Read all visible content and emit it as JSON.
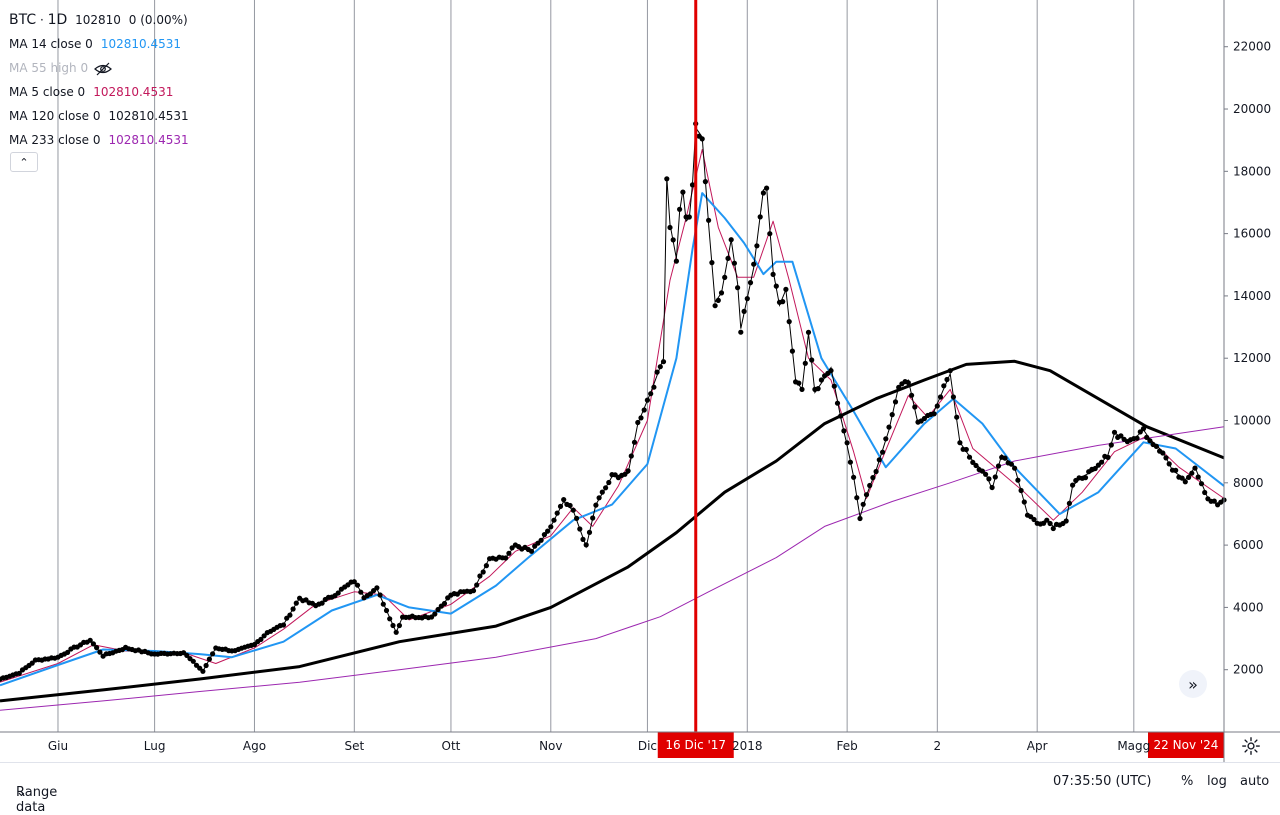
{
  "legend": {
    "symbol": "BTC",
    "sep": "·",
    "interval": "1D",
    "price": "102810",
    "change": "0 (0.00%)",
    "indicators": [
      {
        "label": "MA 14 close 0",
        "value": "102810.4531",
        "color": "#2962ff",
        "value_color": "#2196f3"
      },
      {
        "label": "MA 55 high 0",
        "value": "",
        "color": "#b2b5be",
        "hidden": true
      },
      {
        "label": "MA 5 close 0",
        "value": "102810.4531",
        "color": "#c2185b",
        "value_color": "#c2185b"
      },
      {
        "label": "MA 120 close 0",
        "value": "102810.4531",
        "color": "#000000",
        "value_color": "#131722"
      },
      {
        "label": "MA 233 close 0",
        "value": "102810.4531",
        "color": "#9c27b0",
        "value_color": "#9c27b0"
      }
    ],
    "collapse_icon": "chevron-up-icon"
  },
  "scroll_icon": "double-chevron-right-icon",
  "bottom": {
    "range_label": "Range data",
    "time": "07:35:50 (UTC)",
    "pct": "%",
    "log": "log",
    "auto": "auto"
  },
  "chart_data": {
    "type": "line",
    "ylim": [
      0,
      23500
    ],
    "yticks": [
      2000,
      4000,
      6000,
      8000,
      10000,
      12000,
      14000,
      16000,
      18000,
      20000,
      22000
    ],
    "x_range": [
      "2017-05-14",
      "2018-05-29"
    ],
    "xticks": [
      {
        "date": "2017-06-01",
        "label": "Giu"
      },
      {
        "date": "2017-07-01",
        "label": "Lug"
      },
      {
        "date": "2017-08-01",
        "label": "Ago"
      },
      {
        "date": "2017-09-01",
        "label": "Set"
      },
      {
        "date": "2017-10-01",
        "label": "Ott"
      },
      {
        "date": "2017-11-01",
        "label": "Nov"
      },
      {
        "date": "2017-12-01",
        "label": "Dic"
      },
      {
        "date": "2018-01-01",
        "label": "2018"
      },
      {
        "date": "2018-02-01",
        "label": "Feb"
      },
      {
        "date": "2018-03-01",
        "label": "2"
      },
      {
        "date": "2018-04-01",
        "label": "Apr"
      },
      {
        "date": "2018-05-01",
        "label": "Magg"
      }
    ],
    "crosshair": {
      "date": "2017-12-16",
      "label": "16 Dic '17",
      "color": "#e00000"
    },
    "end_label": "22 Nov '24",
    "price_key_points": [
      [
        "2017-05-14",
        1700
      ],
      [
        "2017-05-20",
        1900
      ],
      [
        "2017-05-25",
        2300
      ],
      [
        "2017-06-01",
        2400
      ],
      [
        "2017-06-06",
        2700
      ],
      [
        "2017-06-11",
        2950
      ],
      [
        "2017-06-15",
        2450
      ],
      [
        "2017-06-22",
        2700
      ],
      [
        "2017-07-01",
        2500
      ],
      [
        "2017-07-10",
        2550
      ],
      [
        "2017-07-16",
        1950
      ],
      [
        "2017-07-20",
        2700
      ],
      [
        "2017-07-26",
        2600
      ],
      [
        "2017-08-01",
        2800
      ],
      [
        "2017-08-05",
        3200
      ],
      [
        "2017-08-10",
        3450
      ],
      [
        "2017-08-15",
        4300
      ],
      [
        "2017-08-20",
        4050
      ],
      [
        "2017-08-25",
        4350
      ],
      [
        "2017-09-01",
        4850
      ],
      [
        "2017-09-04",
        4350
      ],
      [
        "2017-09-08",
        4600
      ],
      [
        "2017-09-14",
        3200
      ],
      [
        "2017-09-16",
        3700
      ],
      [
        "2017-09-25",
        3700
      ],
      [
        "2017-10-01",
        4400
      ],
      [
        "2017-10-08",
        4550
      ],
      [
        "2017-10-13",
        5600
      ],
      [
        "2017-10-18",
        5600
      ],
      [
        "2017-10-21",
        6000
      ],
      [
        "2017-10-26",
        5800
      ],
      [
        "2017-10-31",
        6400
      ],
      [
        "2017-11-05",
        7400
      ],
      [
        "2017-11-08",
        7100
      ],
      [
        "2017-11-12",
        5950
      ],
      [
        "2017-11-15",
        7300
      ],
      [
        "2017-11-20",
        8200
      ],
      [
        "2017-11-25",
        8300
      ],
      [
        "2017-11-28",
        9900
      ],
      [
        "2017-12-02",
        10900
      ],
      [
        "2017-12-06",
        12000
      ],
      [
        "2017-12-07",
        17800
      ],
      [
        "2017-12-08",
        16300
      ],
      [
        "2017-12-10",
        15200
      ],
      [
        "2017-12-11",
        16700
      ],
      [
        "2017-12-12",
        17400
      ],
      [
        "2017-12-13",
        16400
      ],
      [
        "2017-12-14",
        16500
      ],
      [
        "2017-12-15",
        17600
      ],
      [
        "2017-12-16",
        19400
      ],
      [
        "2017-12-18",
        19100
      ],
      [
        "2017-12-20",
        16300
      ],
      [
        "2017-12-22",
        13800
      ],
      [
        "2017-12-24",
        14100
      ],
      [
        "2017-12-27",
        15800
      ],
      [
        "2017-12-29",
        14400
      ],
      [
        "2017-12-30",
        12950
      ],
      [
        "2018-01-03",
        14900
      ],
      [
        "2018-01-06",
        17400
      ],
      [
        "2018-01-07",
        17500
      ],
      [
        "2018-01-09",
        14800
      ],
      [
        "2018-01-11",
        13700
      ],
      [
        "2018-01-13",
        14200
      ],
      [
        "2018-01-16",
        11300
      ],
      [
        "2018-01-18",
        11000
      ],
      [
        "2018-01-20",
        12800
      ],
      [
        "2018-01-22",
        10900
      ],
      [
        "2018-01-24",
        11200
      ],
      [
        "2018-01-27",
        11700
      ],
      [
        "2018-01-30",
        10100
      ],
      [
        "2018-02-01",
        9200
      ],
      [
        "2018-02-03",
        8200
      ],
      [
        "2018-02-05",
        6900
      ],
      [
        "2018-02-07",
        7600
      ],
      [
        "2018-02-10",
        8400
      ],
      [
        "2018-02-14",
        9700
      ],
      [
        "2018-02-17",
        11100
      ],
      [
        "2018-02-20",
        11300
      ],
      [
        "2018-02-23",
        9900
      ],
      [
        "2018-02-28",
        10300
      ],
      [
        "2018-03-05",
        11500
      ],
      [
        "2018-03-08",
        9300
      ],
      [
        "2018-03-12",
        8700
      ],
      [
        "2018-03-16",
        8300
      ],
      [
        "2018-03-18",
        7800
      ],
      [
        "2018-03-21",
        8900
      ],
      [
        "2018-03-25",
        8500
      ],
      [
        "2018-03-29",
        7000
      ],
      [
        "2018-04-01",
        6700
      ],
      [
        "2018-04-04",
        6800
      ],
      [
        "2018-04-06",
        6600
      ],
      [
        "2018-04-10",
        6800
      ],
      [
        "2018-04-12",
        7900
      ],
      [
        "2018-04-15",
        8200
      ],
      [
        "2018-04-19",
        8400
      ],
      [
        "2018-04-23",
        8900
      ],
      [
        "2018-04-25",
        9600
      ],
      [
        "2018-04-30",
        9300
      ],
      [
        "2018-05-04",
        9700
      ],
      [
        "2018-05-06",
        9400
      ],
      [
        "2018-05-10",
        9000
      ],
      [
        "2018-05-13",
        8400
      ],
      [
        "2018-05-17",
        8100
      ],
      [
        "2018-05-20",
        8500
      ],
      [
        "2018-05-24",
        7500
      ],
      [
        "2018-05-27",
        7300
      ],
      [
        "2018-05-29",
        7450
      ]
    ],
    "series": [
      {
        "name": "MA 5 close 0",
        "color": "#c2185b",
        "width": 1,
        "points": [
          [
            "2017-05-14",
            1600
          ],
          [
            "2017-06-01",
            2200
          ],
          [
            "2017-06-12",
            2800
          ],
          [
            "2017-06-22",
            2600
          ],
          [
            "2017-07-10",
            2550
          ],
          [
            "2017-07-20",
            2200
          ],
          [
            "2017-08-01",
            2700
          ],
          [
            "2017-08-10",
            3300
          ],
          [
            "2017-08-20",
            4100
          ],
          [
            "2017-09-01",
            4500
          ],
          [
            "2017-09-10",
            4400
          ],
          [
            "2017-09-18",
            3600
          ],
          [
            "2017-10-01",
            4100
          ],
          [
            "2017-10-13",
            5000
          ],
          [
            "2017-10-21",
            5800
          ],
          [
            "2017-11-01",
            6300
          ],
          [
            "2017-11-08",
            7200
          ],
          [
            "2017-11-14",
            6600
          ],
          [
            "2017-11-22",
            7900
          ],
          [
            "2017-12-01",
            10000
          ],
          [
            "2017-12-08",
            14500
          ],
          [
            "2017-12-13",
            16500
          ],
          [
            "2017-12-18",
            18700
          ],
          [
            "2017-12-23",
            16200
          ],
          [
            "2017-12-29",
            14600
          ],
          [
            "2018-01-03",
            14600
          ],
          [
            "2018-01-09",
            16400
          ],
          [
            "2018-01-14",
            14500
          ],
          [
            "2018-01-20",
            12000
          ],
          [
            "2018-01-27",
            11300
          ],
          [
            "2018-02-03",
            9000
          ],
          [
            "2018-02-07",
            7500
          ],
          [
            "2018-02-12",
            8800
          ],
          [
            "2018-02-20",
            10800
          ],
          [
            "2018-02-26",
            10100
          ],
          [
            "2018-03-05",
            11000
          ],
          [
            "2018-03-12",
            9100
          ],
          [
            "2018-03-20",
            8400
          ],
          [
            "2018-03-28",
            7700
          ],
          [
            "2018-04-06",
            6800
          ],
          [
            "2018-04-15",
            7700
          ],
          [
            "2018-04-25",
            9000
          ],
          [
            "2018-05-05",
            9500
          ],
          [
            "2018-05-15",
            8500
          ],
          [
            "2018-05-29",
            7500
          ]
        ]
      },
      {
        "name": "MA 14 close 0",
        "color": "#2196f3",
        "width": 2,
        "points": [
          [
            "2017-05-14",
            1500
          ],
          [
            "2017-06-01",
            2150
          ],
          [
            "2017-06-15",
            2650
          ],
          [
            "2017-07-01",
            2600
          ],
          [
            "2017-07-15",
            2500
          ],
          [
            "2017-07-25",
            2400
          ],
          [
            "2017-08-10",
            2900
          ],
          [
            "2017-08-25",
            3900
          ],
          [
            "2017-09-08",
            4400
          ],
          [
            "2017-09-18",
            4000
          ],
          [
            "2017-10-01",
            3800
          ],
          [
            "2017-10-15",
            4700
          ],
          [
            "2017-10-25",
            5600
          ],
          [
            "2017-11-08",
            6800
          ],
          [
            "2017-11-20",
            7300
          ],
          [
            "2017-12-01",
            8600
          ],
          [
            "2017-12-10",
            12000
          ],
          [
            "2017-12-15",
            15500
          ],
          [
            "2017-12-18",
            17300
          ],
          [
            "2017-12-25",
            16500
          ],
          [
            "2017-12-31",
            15700
          ],
          [
            "2018-01-06",
            14700
          ],
          [
            "2018-01-10",
            15100
          ],
          [
            "2018-01-15",
            15100
          ],
          [
            "2018-01-24",
            12000
          ],
          [
            "2018-02-03",
            10300
          ],
          [
            "2018-02-13",
            8500
          ],
          [
            "2018-02-25",
            9900
          ],
          [
            "2018-03-06",
            10700
          ],
          [
            "2018-03-15",
            9900
          ],
          [
            "2018-03-25",
            8500
          ],
          [
            "2018-04-08",
            7000
          ],
          [
            "2018-04-20",
            7700
          ],
          [
            "2018-05-04",
            9300
          ],
          [
            "2018-05-14",
            9100
          ],
          [
            "2018-05-29",
            7900
          ]
        ]
      },
      {
        "name": "MA 120 close 0",
        "color": "#000000",
        "width": 3,
        "points": [
          [
            "2017-05-14",
            1000
          ],
          [
            "2017-06-15",
            1350
          ],
          [
            "2017-07-15",
            1700
          ],
          [
            "2017-08-15",
            2100
          ],
          [
            "2017-09-15",
            2900
          ],
          [
            "2017-10-15",
            3400
          ],
          [
            "2017-11-01",
            4000
          ],
          [
            "2017-11-25",
            5300
          ],
          [
            "2017-12-10",
            6400
          ],
          [
            "2017-12-25",
            7700
          ],
          [
            "2018-01-10",
            8700
          ],
          [
            "2018-01-25",
            9900
          ],
          [
            "2018-02-10",
            10700
          ],
          [
            "2018-02-25",
            11300
          ],
          [
            "2018-03-10",
            11800
          ],
          [
            "2018-03-25",
            11900
          ],
          [
            "2018-04-05",
            11600
          ],
          [
            "2018-04-20",
            10700
          ],
          [
            "2018-05-05",
            9800
          ],
          [
            "2018-05-29",
            8800
          ]
        ]
      },
      {
        "name": "MA 233 close 0",
        "color": "#9c27b0",
        "width": 1,
        "points": [
          [
            "2017-05-14",
            700
          ],
          [
            "2017-06-15",
            1000
          ],
          [
            "2017-07-15",
            1300
          ],
          [
            "2017-08-15",
            1600
          ],
          [
            "2017-09-15",
            2000
          ],
          [
            "2017-10-15",
            2400
          ],
          [
            "2017-11-15",
            3000
          ],
          [
            "2017-12-05",
            3700
          ],
          [
            "2017-12-20",
            4500
          ],
          [
            "2018-01-10",
            5600
          ],
          [
            "2018-01-25",
            6600
          ],
          [
            "2018-02-15",
            7400
          ],
          [
            "2018-03-05",
            8000
          ],
          [
            "2018-03-25",
            8700
          ],
          [
            "2018-04-20",
            9200
          ],
          [
            "2018-05-29",
            9800
          ]
        ]
      }
    ]
  }
}
